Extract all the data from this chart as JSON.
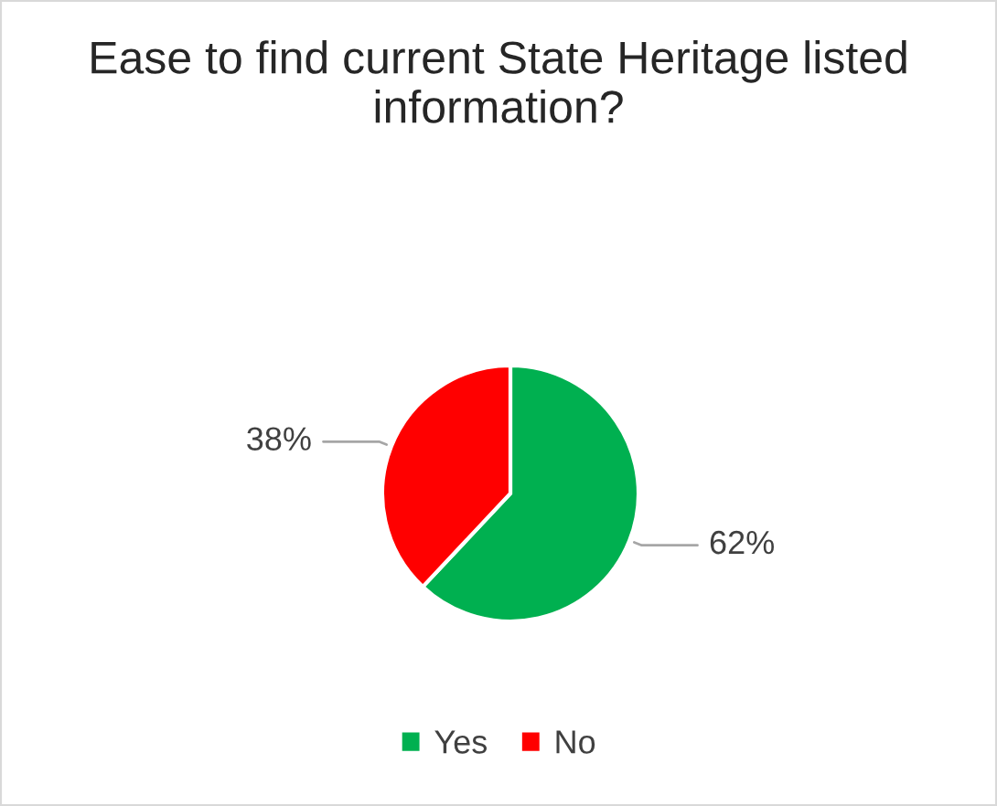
{
  "chart_data": {
    "type": "pie",
    "title": "Ease to find current State Heritage listed information?",
    "categories": [
      "Yes",
      "No"
    ],
    "values": [
      62,
      38
    ],
    "value_labels": [
      "62%",
      "38%"
    ],
    "colors": [
      "#00b050",
      "#ff0000"
    ],
    "legend": "bottom"
  }
}
